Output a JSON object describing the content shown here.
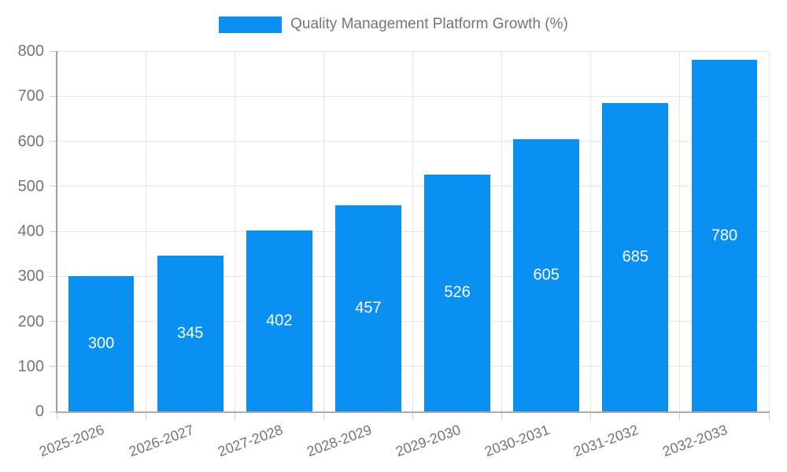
{
  "chart_data": {
    "type": "bar",
    "title": "Quality Management Platform Growth (%)",
    "categories": [
      "2025-2026",
      "2026-2027",
      "2027-2028",
      "2028-2029",
      "2029-2030",
      "2030-2031",
      "2031-2032",
      "2032-2033"
    ],
    "values": [
      300,
      345,
      402,
      457,
      526,
      605,
      685,
      780
    ],
    "xlabel": "",
    "ylabel": "",
    "ylim": [
      0,
      800
    ],
    "ytick_step": 100,
    "ytick_labels": [
      "0",
      "100",
      "200",
      "300",
      "400",
      "500",
      "600",
      "700",
      "800"
    ],
    "grid": true,
    "legend_position": "top-center",
    "x_label_rotation_deg": -20,
    "colors": {
      "bar": "#0a90f1",
      "bar_value_label": "#ffffff",
      "axis_text": "#757575",
      "grid_line": "#e6e6e6",
      "axis_line": "#ababab"
    }
  },
  "legend": {
    "series_label": "Quality Management Platform Growth (%)"
  }
}
